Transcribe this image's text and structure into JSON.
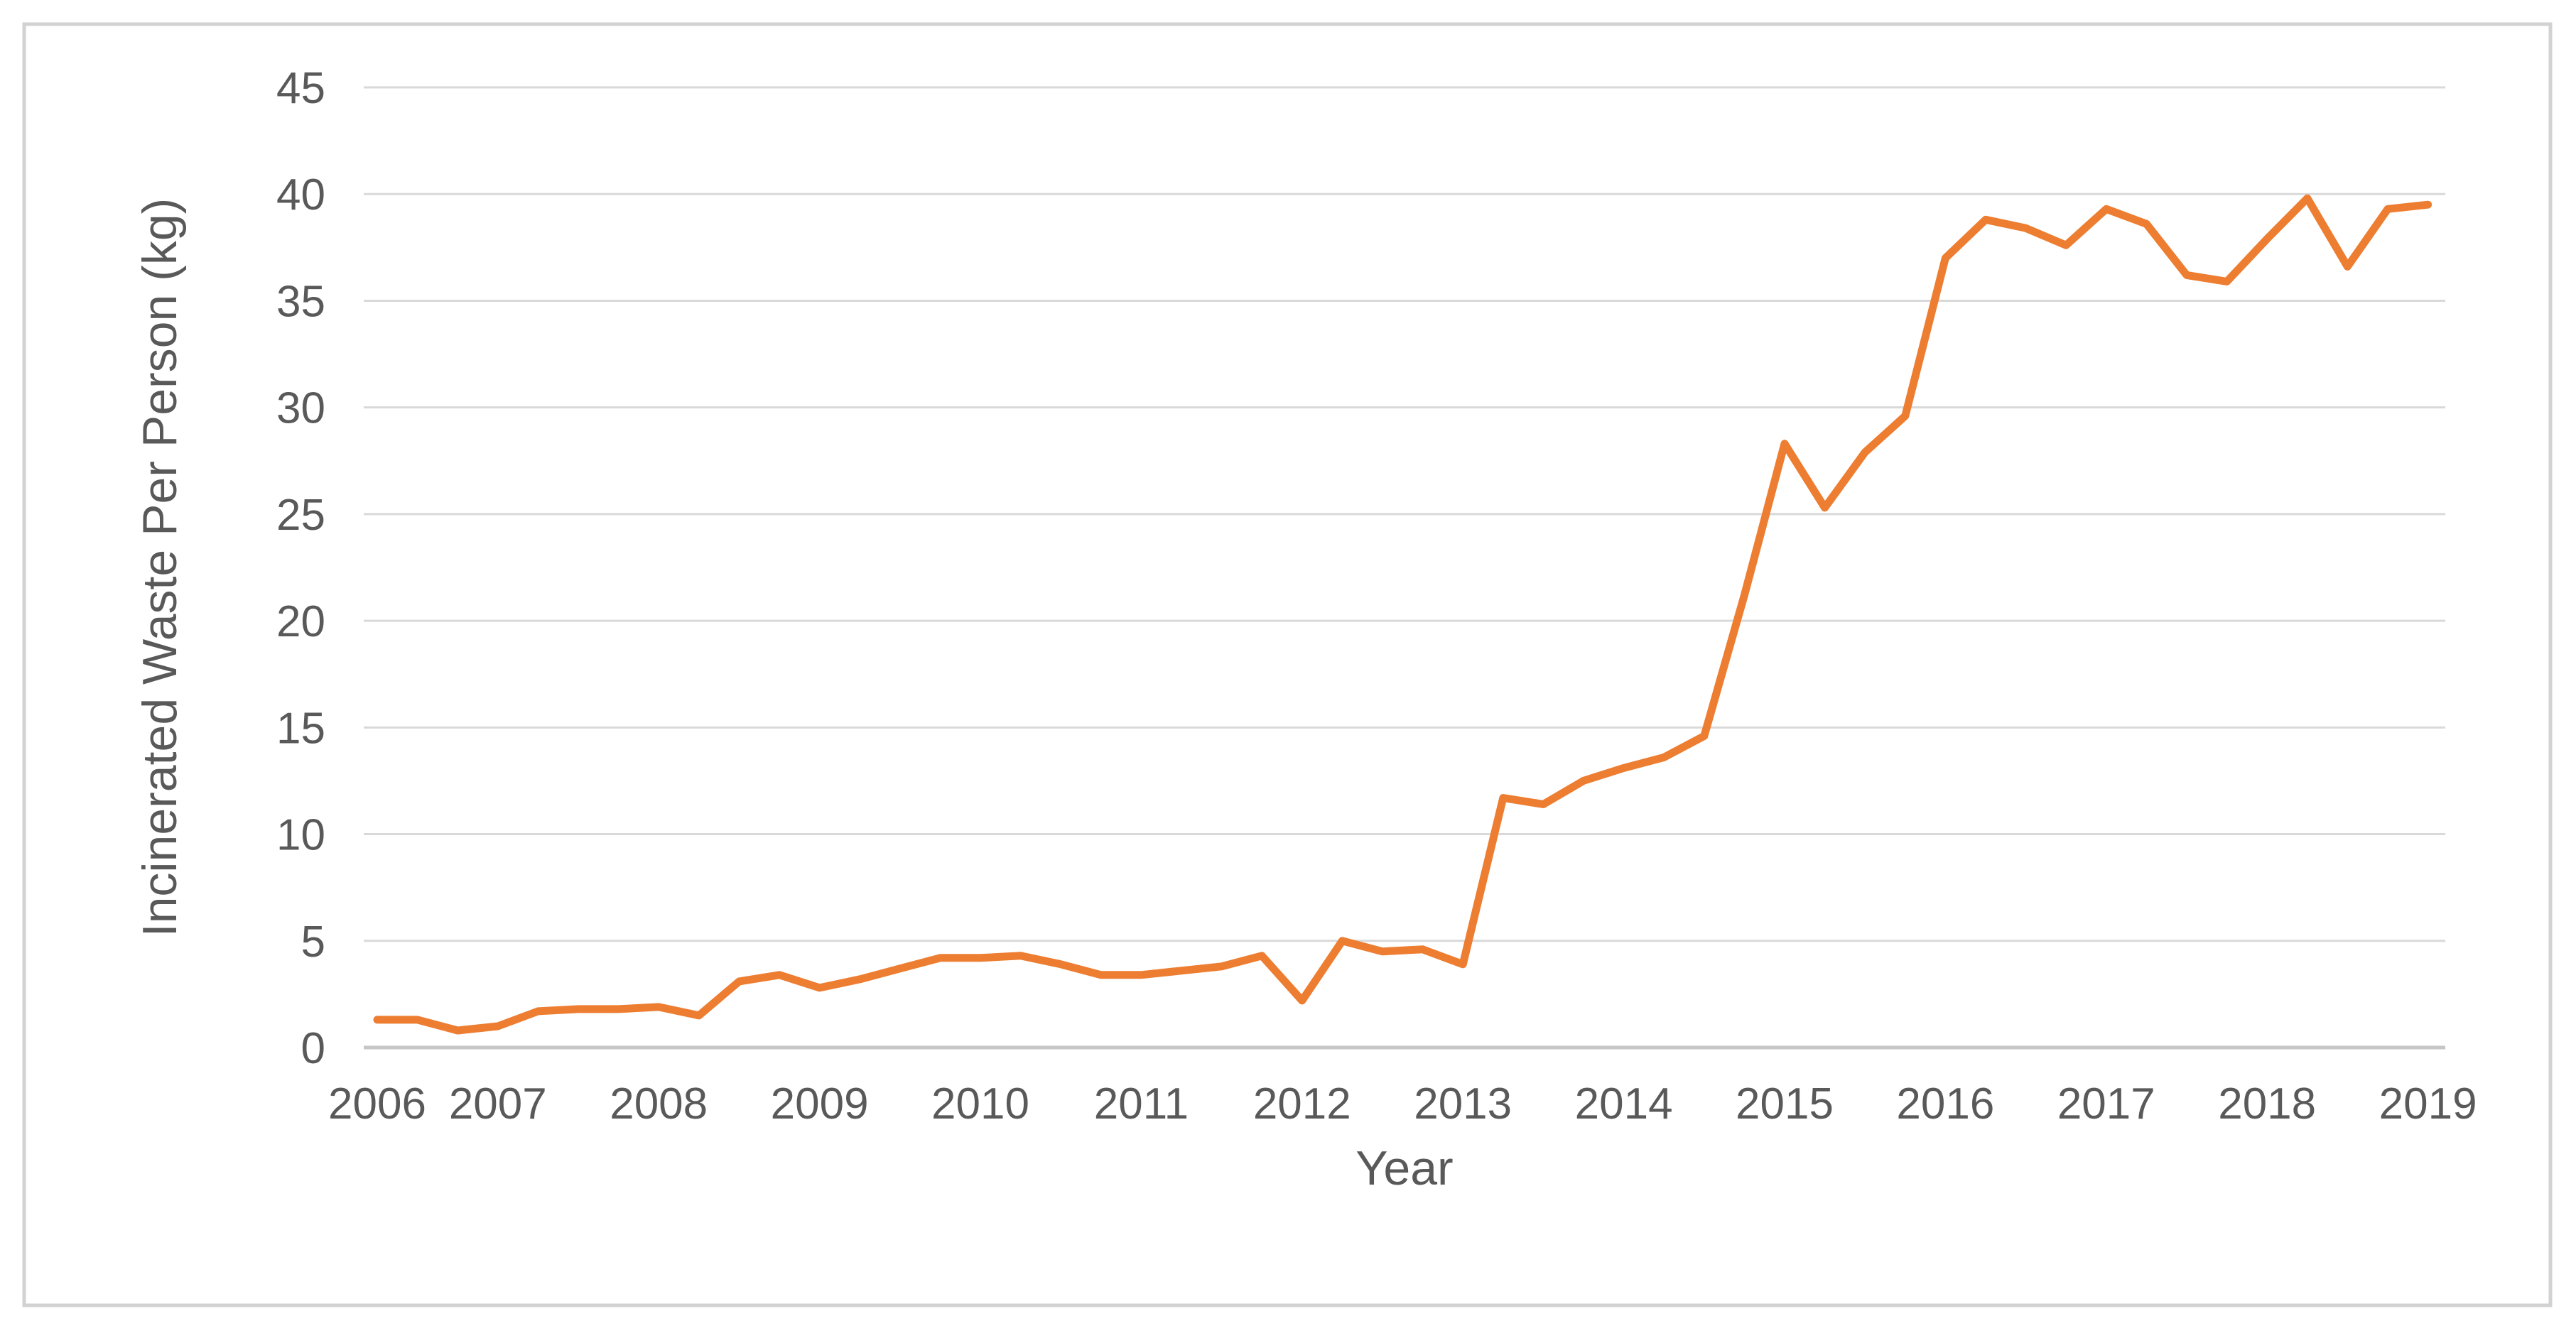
{
  "figure": {
    "background_color": "#ffffff",
    "border_color": "#d2d2d2"
  },
  "styles": {
    "line_color": "#ED7D31",
    "gridline_color": "#d9d9d9",
    "axis_line_color": "#c6c6c6",
    "text_color": "#595959"
  },
  "chart_data": {
    "type": "line",
    "title": "",
    "xlabel": "Year",
    "ylabel": "Incinerated Waste Per Person (kg)",
    "ylim": [
      0,
      45
    ],
    "ytick_step": 5,
    "ytick_labels": [
      "0",
      "5",
      "10",
      "15",
      "20",
      "25",
      "30",
      "35",
      "40",
      "45"
    ],
    "xtick_labels": [
      "2006",
      "2007",
      "2008",
      "2009",
      "2010",
      "2011",
      "2012",
      "2013",
      "2014",
      "2015",
      "2016",
      "2017",
      "2018",
      "2019"
    ],
    "grid": "horizontal",
    "legend_position": "none",
    "series": [
      {
        "name": "Incinerated Waste Per Person (kg)",
        "color": "#ED7D31",
        "x": [
          "2006 Q2",
          "2006 Q3",
          "2006 Q4",
          "2007 Q1",
          "2007 Q2",
          "2007 Q3",
          "2007 Q4",
          "2008 Q1",
          "2008 Q2",
          "2008 Q3",
          "2008 Q4",
          "2009 Q1",
          "2009 Q2",
          "2009 Q3",
          "2009 Q4",
          "2010 Q1",
          "2010 Q2",
          "2010 Q3",
          "2010 Q4",
          "2011 Q1",
          "2011 Q2",
          "2011 Q3",
          "2011 Q4",
          "2012 Q1",
          "2012 Q2",
          "2012 Q3",
          "2012 Q4",
          "2013 Q1",
          "2013 Q2",
          "2013 Q3",
          "2013 Q4",
          "2014 Q1",
          "2014 Q2",
          "2014 Q3",
          "2014 Q4",
          "2015 Q1",
          "2015 Q2",
          "2015 Q3",
          "2015 Q4",
          "2016 Q1",
          "2016 Q2",
          "2016 Q3",
          "2016 Q4",
          "2017 Q1",
          "2017 Q2",
          "2017 Q3",
          "2017 Q4",
          "2018 Q1",
          "2018 Q2",
          "2018 Q3",
          "2018 Q4",
          "2019 Q1"
        ],
        "values": [
          1.3,
          1.3,
          0.8,
          1.0,
          1.7,
          1.8,
          1.8,
          1.9,
          1.5,
          3.1,
          3.4,
          2.8,
          3.2,
          3.7,
          4.2,
          4.2,
          4.3,
          3.9,
          3.4,
          3.4,
          3.6,
          3.8,
          4.3,
          2.2,
          5.0,
          4.5,
          4.6,
          3.9,
          11.7,
          11.4,
          12.5,
          13.1,
          13.6,
          14.6,
          21.2,
          28.3,
          25.3,
          27.9,
          29.6,
          37.0,
          38.8,
          38.4,
          37.6,
          39.3,
          38.6,
          36.2,
          35.9,
          37.9,
          39.8,
          36.6,
          39.3,
          39.5
        ]
      }
    ]
  }
}
